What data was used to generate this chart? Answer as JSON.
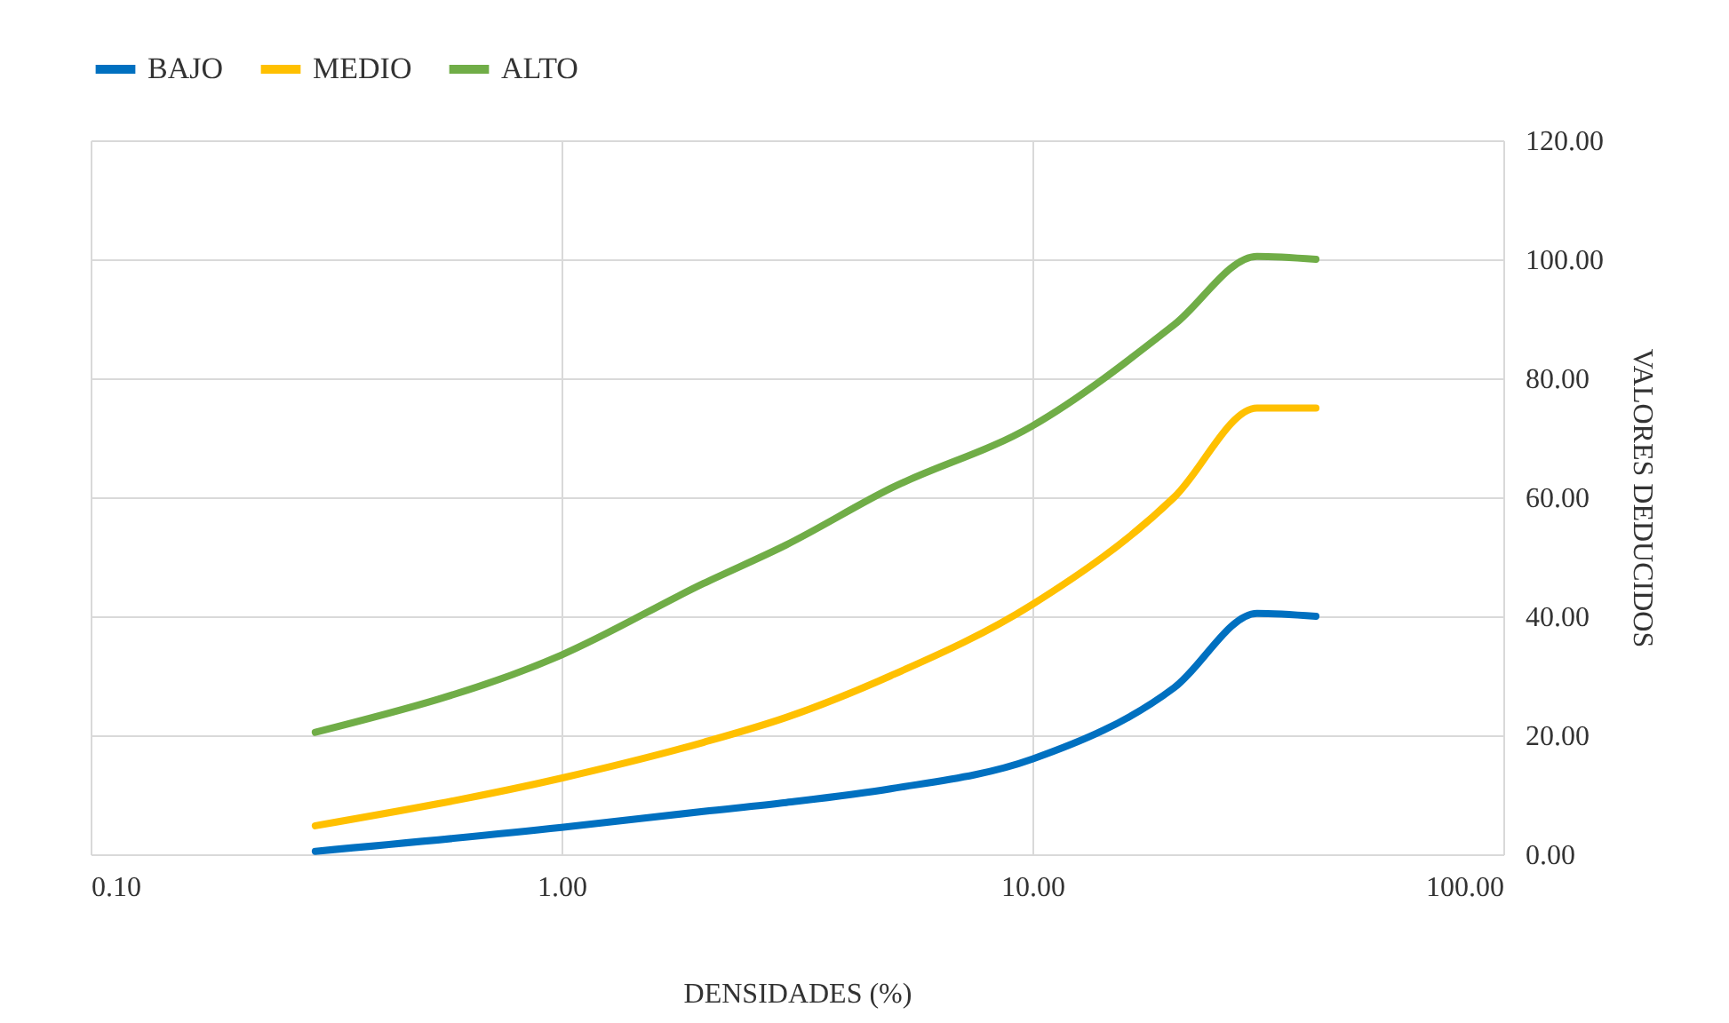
{
  "chart_data": {
    "type": "line",
    "xlabel": "DENSIDADES (%)",
    "ylabel": "VALORES  DEDUCIDOS",
    "log": "x",
    "grid": true,
    "legend": "top",
    "line_style": "solid",
    "marker": "none",
    "x": [
      0.3,
      1,
      2,
      3,
      5,
      10,
      20,
      30,
      40
    ],
    "xlim": [
      0.1,
      100
    ],
    "xticks": [
      {
        "value": 0.1,
        "label": "0.10"
      },
      {
        "value": 1,
        "label": "1.00"
      },
      {
        "value": 10,
        "label": "10.00"
      },
      {
        "value": 100,
        "label": "100.00"
      }
    ],
    "ylim": [
      0,
      120
    ],
    "yticks": [
      {
        "value": 0,
        "label": "0.00"
      },
      {
        "value": 20,
        "label": "20.00"
      },
      {
        "value": 40,
        "label": "40.00"
      },
      {
        "value": 60,
        "label": "60.00"
      },
      {
        "value": 80,
        "label": "80.00"
      },
      {
        "value": 100,
        "label": "100.00"
      },
      {
        "value": 120,
        "label": "120.00"
      }
    ],
    "series": [
      {
        "name": "BAJO",
        "color": "#0070c0",
        "values": [
          0.5,
          4.5,
          7.2,
          8.7,
          11,
          16,
          28,
          40.5,
          40
        ]
      },
      {
        "name": "MEDIO",
        "color": "#ffc000",
        "values": [
          4.8,
          12.8,
          18.8,
          23,
          30,
          42,
          60,
          75,
          75
        ]
      },
      {
        "name": "ALTO",
        "color": "#70ad47",
        "values": [
          20.5,
          33.5,
          45.5,
          52,
          61.5,
          72,
          89,
          100.5,
          100
        ]
      }
    ]
  }
}
